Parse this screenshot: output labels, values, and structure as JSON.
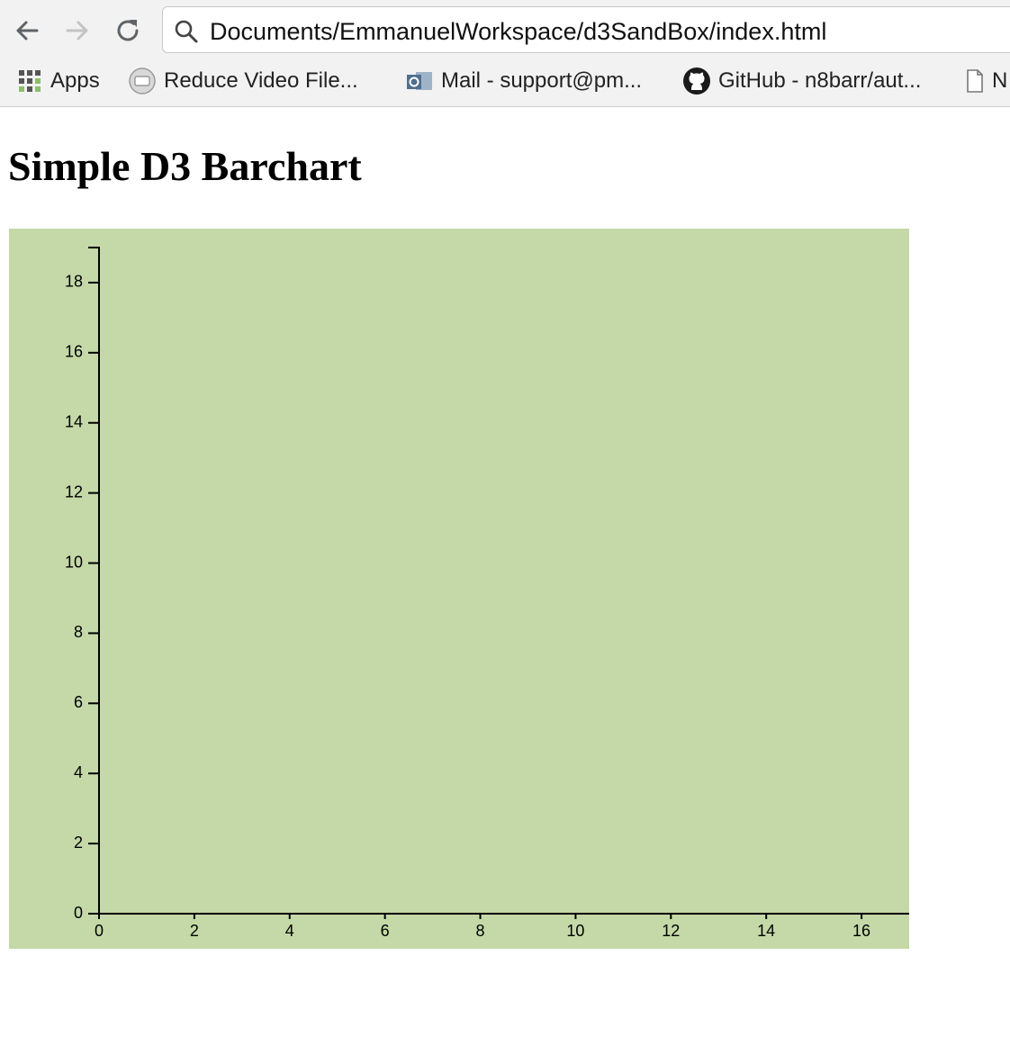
{
  "browser": {
    "url": "Documents/EmmanuelWorkspace/d3SandBox/index.html",
    "bookmarks": [
      {
        "label": "Apps",
        "icon": "apps-grid-icon"
      },
      {
        "label": "Reduce Video File...",
        "icon": "video-site-icon"
      },
      {
        "label": "Mail - support@pm...",
        "icon": "outlook-mail-icon"
      },
      {
        "label": "GitHub - n8barr/aut...",
        "icon": "github-icon"
      },
      {
        "label": "N",
        "icon": "page-icon"
      }
    ]
  },
  "page": {
    "title": "Simple D3 Barchart"
  },
  "chart_data": {
    "type": "bar",
    "background": "#c4d9a7",
    "title": "",
    "xlabel": "",
    "ylabel": "",
    "xlim": [
      0,
      17
    ],
    "ylim": [
      0,
      19
    ],
    "x_ticks": [
      "0",
      "2",
      "4",
      "6",
      "8",
      "10",
      "12",
      "14",
      "16"
    ],
    "y_ticks": [
      "0",
      "2",
      "4",
      "6",
      "8",
      "10",
      "12",
      "14",
      "16",
      "18"
    ],
    "values": [],
    "grid": false
  }
}
